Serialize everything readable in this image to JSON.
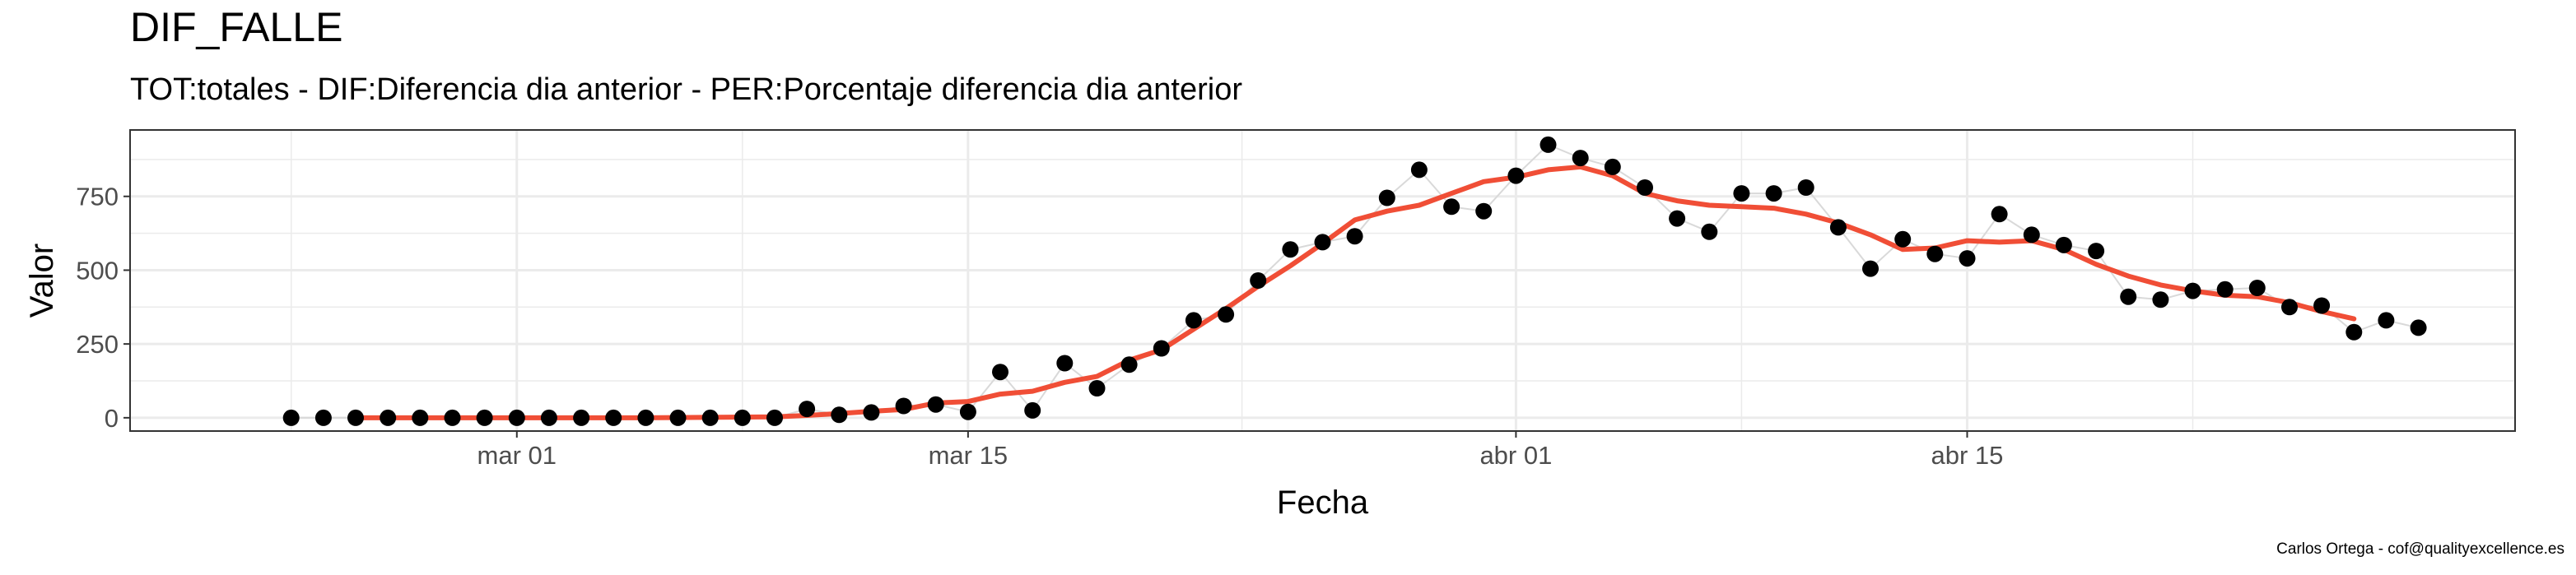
{
  "chart_data": {
    "type": "scatter",
    "title": "DIF_FALLE",
    "subtitle": "TOT:totales - DIF:Diferencia dia anterior - PER:Porcentaje diferencia dia anterior",
    "xlabel": "Fecha",
    "ylabel": "Valor",
    "caption": "Carlos Ortega - cof@qualityexcellence.es",
    "x_ticks": [
      {
        "label": "mar 01",
        "date": "2020-03-01"
      },
      {
        "label": "mar 15",
        "date": "2020-03-15"
      },
      {
        "label": "abr 01",
        "date": "2020-04-01"
      },
      {
        "label": "abr 15",
        "date": "2020-04-15"
      }
    ],
    "y_ticks": [
      0,
      250,
      500,
      750
    ],
    "xlim": [
      "2020-02-18",
      "2020-05-02"
    ],
    "ylim": [
      -45,
      975
    ],
    "grid": true,
    "series": [
      {
        "kind": "points",
        "color": "#000000",
        "points": [
          [
            "2020-02-23",
            0
          ],
          [
            "2020-02-24",
            0
          ],
          [
            "2020-02-25",
            0
          ],
          [
            "2020-02-26",
            0
          ],
          [
            "2020-02-27",
            0
          ],
          [
            "2020-02-28",
            0
          ],
          [
            "2020-02-29",
            0
          ],
          [
            "2020-03-01",
            0
          ],
          [
            "2020-03-02",
            0
          ],
          [
            "2020-03-03",
            0
          ],
          [
            "2020-03-04",
            0
          ],
          [
            "2020-03-05",
            0
          ],
          [
            "2020-03-06",
            0
          ],
          [
            "2020-03-07",
            0
          ],
          [
            "2020-03-08",
            0
          ],
          [
            "2020-03-09",
            0
          ],
          [
            "2020-03-10",
            30
          ],
          [
            "2020-03-11",
            10
          ],
          [
            "2020-03-12",
            18
          ],
          [
            "2020-03-13",
            40
          ],
          [
            "2020-03-14",
            45
          ],
          [
            "2020-03-15",
            20
          ],
          [
            "2020-03-16",
            155
          ],
          [
            "2020-03-17",
            25
          ],
          [
            "2020-03-18",
            185
          ],
          [
            "2020-03-19",
            100
          ],
          [
            "2020-03-20",
            180
          ],
          [
            "2020-03-21",
            235
          ],
          [
            "2020-03-22",
            330
          ],
          [
            "2020-03-23",
            350
          ],
          [
            "2020-03-24",
            465
          ],
          [
            "2020-03-25",
            570
          ],
          [
            "2020-03-26",
            595
          ],
          [
            "2020-03-27",
            615
          ],
          [
            "2020-03-28",
            745
          ],
          [
            "2020-03-29",
            840
          ],
          [
            "2020-03-30",
            715
          ],
          [
            "2020-03-31",
            700
          ],
          [
            "2020-04-01",
            820
          ],
          [
            "2020-04-02",
            925
          ],
          [
            "2020-04-03",
            880
          ],
          [
            "2020-04-04",
            850
          ],
          [
            "2020-04-05",
            780
          ],
          [
            "2020-04-06",
            675
          ],
          [
            "2020-04-07",
            630
          ],
          [
            "2020-04-08",
            760
          ],
          [
            "2020-04-09",
            760
          ],
          [
            "2020-04-10",
            780
          ],
          [
            "2020-04-11",
            645
          ],
          [
            "2020-04-12",
            505
          ],
          [
            "2020-04-13",
            605
          ],
          [
            "2020-04-14",
            555
          ],
          [
            "2020-04-15",
            540
          ],
          [
            "2020-04-16",
            690
          ],
          [
            "2020-04-17",
            620
          ],
          [
            "2020-04-18",
            585
          ],
          [
            "2020-04-19",
            565
          ],
          [
            "2020-04-20",
            410
          ],
          [
            "2020-04-21",
            400
          ],
          [
            "2020-04-22",
            430
          ],
          [
            "2020-04-23",
            435
          ],
          [
            "2020-04-24",
            440
          ],
          [
            "2020-04-25",
            375
          ],
          [
            "2020-04-26",
            380
          ],
          [
            "2020-04-27",
            290
          ],
          [
            "2020-04-28",
            330
          ],
          [
            "2020-04-29",
            305
          ]
        ]
      },
      {
        "kind": "moving-average-line",
        "color": "#F04E36",
        "points": [
          [
            "2020-02-25",
            0
          ],
          [
            "2020-02-27",
            0
          ],
          [
            "2020-03-01",
            0
          ],
          [
            "2020-03-05",
            0
          ],
          [
            "2020-03-09",
            3
          ],
          [
            "2020-03-10",
            8
          ],
          [
            "2020-03-11",
            14
          ],
          [
            "2020-03-12",
            22
          ],
          [
            "2020-03-13",
            28
          ],
          [
            "2020-03-14",
            50
          ],
          [
            "2020-03-15",
            55
          ],
          [
            "2020-03-16",
            80
          ],
          [
            "2020-03-17",
            90
          ],
          [
            "2020-03-18",
            120
          ],
          [
            "2020-03-19",
            140
          ],
          [
            "2020-03-20",
            195
          ],
          [
            "2020-03-21",
            230
          ],
          [
            "2020-03-22",
            300
          ],
          [
            "2020-03-23",
            370
          ],
          [
            "2020-03-24",
            445
          ],
          [
            "2020-03-25",
            515
          ],
          [
            "2020-03-26",
            590
          ],
          [
            "2020-03-27",
            670
          ],
          [
            "2020-03-28",
            700
          ],
          [
            "2020-03-29",
            720
          ],
          [
            "2020-03-30",
            760
          ],
          [
            "2020-03-31",
            800
          ],
          [
            "2020-04-01",
            815
          ],
          [
            "2020-04-02",
            840
          ],
          [
            "2020-04-03",
            850
          ],
          [
            "2020-04-04",
            820
          ],
          [
            "2020-04-05",
            760
          ],
          [
            "2020-04-06",
            735
          ],
          [
            "2020-04-07",
            720
          ],
          [
            "2020-04-08",
            715
          ],
          [
            "2020-04-09",
            710
          ],
          [
            "2020-04-10",
            690
          ],
          [
            "2020-04-11",
            660
          ],
          [
            "2020-04-12",
            620
          ],
          [
            "2020-04-13",
            570
          ],
          [
            "2020-04-14",
            575
          ],
          [
            "2020-04-15",
            600
          ],
          [
            "2020-04-16",
            595
          ],
          [
            "2020-04-17",
            600
          ],
          [
            "2020-04-18",
            570
          ],
          [
            "2020-04-19",
            520
          ],
          [
            "2020-04-20",
            480
          ],
          [
            "2020-04-21",
            450
          ],
          [
            "2020-04-22",
            430
          ],
          [
            "2020-04-23",
            415
          ],
          [
            "2020-04-24",
            410
          ],
          [
            "2020-04-25",
            390
          ],
          [
            "2020-04-26",
            360
          ],
          [
            "2020-04-27",
            335
          ]
        ]
      }
    ]
  }
}
